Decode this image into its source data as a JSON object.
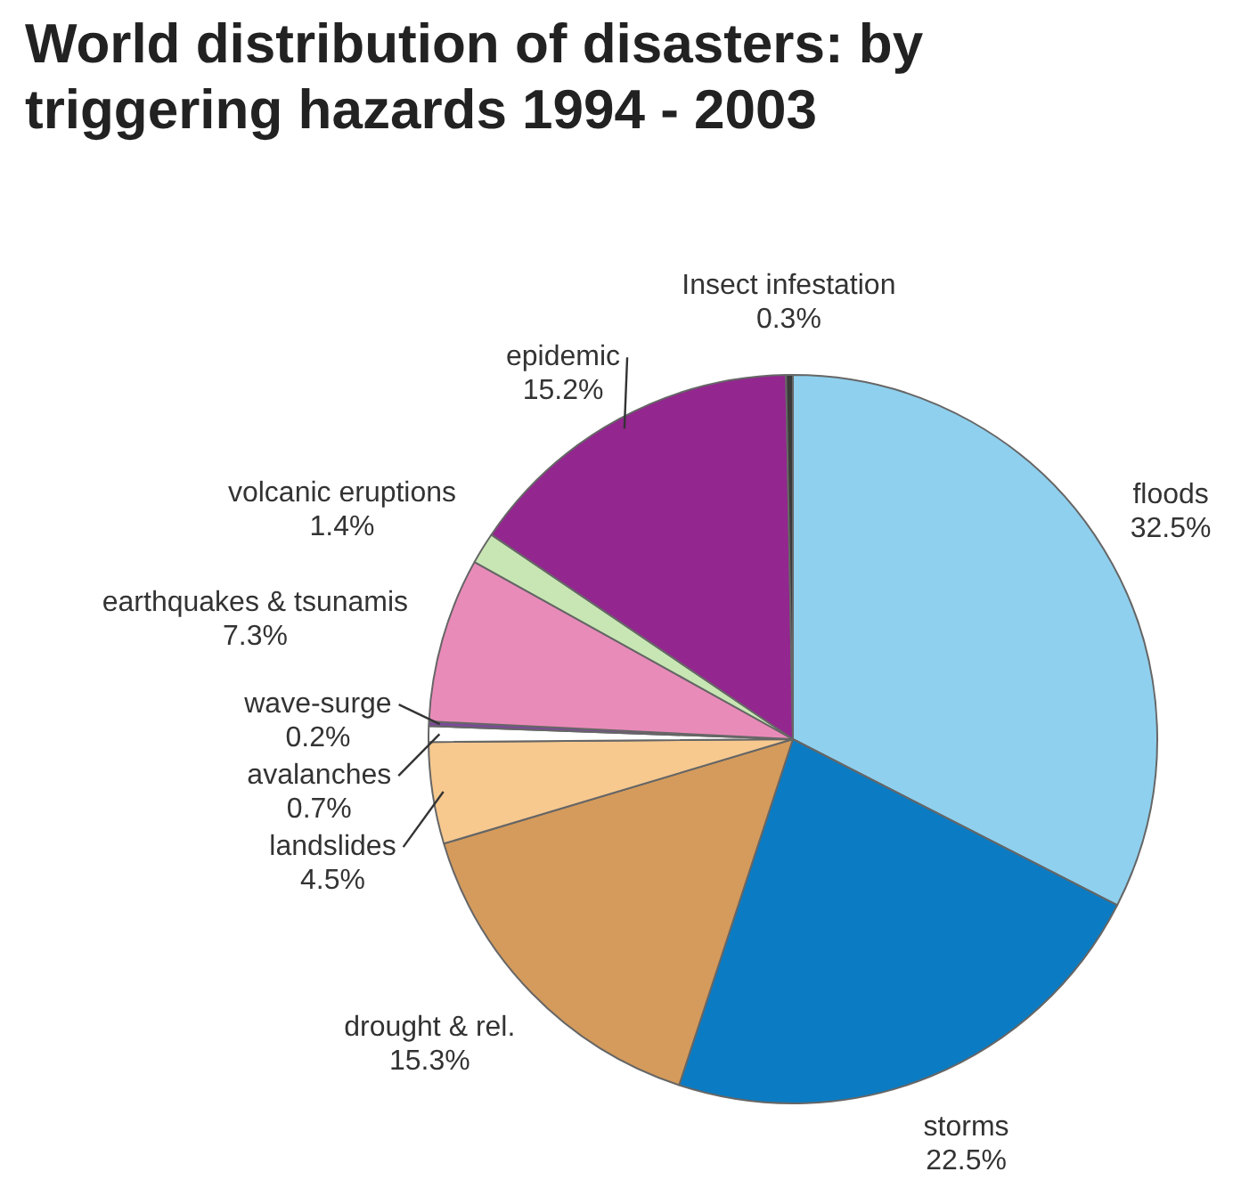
{
  "chart_data": {
    "type": "pie",
    "title": "World distribution of disasters: by triggering hazards 1994 - 2003",
    "categories": [
      "floods",
      "storms",
      "drought & rel.",
      "landslides",
      "avalanches",
      "wave-surge",
      "earthquakes & tsunamis",
      "volcanic eruptions",
      "epidemic",
      "Insect infestation"
    ],
    "values": [
      32.5,
      22.5,
      15.3,
      4.5,
      0.7,
      0.2,
      7.3,
      1.4,
      15.2,
      0.3
    ],
    "value_labels": [
      "32.5%",
      "22.5%",
      "15.3%",
      "4.5%",
      "0.7%",
      "0.2%",
      "7.3%",
      "1.4%",
      "15.2%",
      "0.3%"
    ],
    "colors": [
      "#8fd0ee",
      "#0b7cc3",
      "#d49b5c",
      "#f7c98f",
      "#ffffff",
      "#7b4a9a",
      "#e98bb9",
      "#c8e6b4",
      "#93268f",
      "#3a3a3a"
    ],
    "legend": false
  }
}
